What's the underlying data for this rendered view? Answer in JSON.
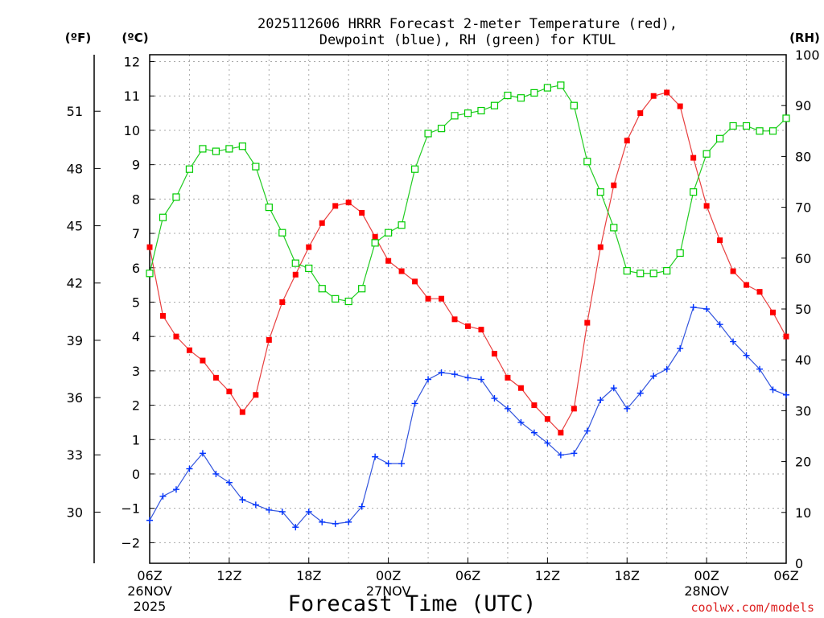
{
  "chart_data": {
    "type": "line",
    "title_line1": "2025112606 HRRR Forecast 2-meter Temperature (red),",
    "title_line2": "Dewpoint (blue), RH (green) for KTUL",
    "xlabel": "Forecast Time (UTC)",
    "unit_f_label": "(ºF)",
    "unit_c_label": "(ºC)",
    "unit_rh_label": "(RH)",
    "watermark": "coolwx.com/models",
    "x": [
      0,
      1,
      2,
      3,
      4,
      5,
      6,
      7,
      8,
      9,
      10,
      11,
      12,
      13,
      14,
      15,
      16,
      17,
      18,
      19,
      20,
      21,
      22,
      23,
      24,
      25,
      26,
      27,
      28,
      29,
      30,
      31,
      32,
      33,
      34,
      35,
      36,
      37,
      38,
      39,
      40,
      41,
      42,
      43,
      44,
      45,
      46,
      47,
      48
    ],
    "xlim": [
      0,
      48
    ],
    "ylim_c": [
      -2.6,
      12.2
    ],
    "ylim_rh": [
      0,
      100
    ],
    "c_ticks": [
      -2,
      -1,
      0,
      1,
      2,
      3,
      4,
      5,
      6,
      7,
      8,
      9,
      10,
      11,
      12
    ],
    "f_ticks": [
      30,
      33,
      36,
      39,
      42,
      45,
      48,
      51
    ],
    "rh_ticks": [
      0,
      10,
      20,
      30,
      40,
      50,
      60,
      70,
      80,
      90,
      100
    ],
    "x_ticks": [
      {
        "h": 0,
        "label": "06Z",
        "date": "26NOV",
        "year": "2025"
      },
      {
        "h": 6,
        "label": "12Z"
      },
      {
        "h": 12,
        "label": "18Z"
      },
      {
        "h": 18,
        "label": "00Z",
        "date": "27NOV"
      },
      {
        "h": 24,
        "label": "06Z"
      },
      {
        "h": 30,
        "label": "12Z"
      },
      {
        "h": 36,
        "label": "18Z"
      },
      {
        "h": 42,
        "label": "00Z",
        "date": "28NOV"
      },
      {
        "h": 48,
        "label": "06Z"
      }
    ],
    "series": [
      {
        "key": "temperature",
        "axis": "c",
        "color": "#ff0000",
        "line_color": "#e84040",
        "marker": "filled-square",
        "values": [
          6.6,
          4.6,
          4.0,
          3.6,
          3.3,
          2.8,
          2.4,
          1.8,
          2.3,
          3.9,
          5.0,
          5.8,
          6.6,
          7.3,
          7.8,
          7.9,
          7.6,
          6.9,
          6.2,
          5.9,
          5.6,
          5.1,
          5.1,
          4.5,
          4.3,
          4.2,
          3.5,
          2.8,
          2.5,
          2.0,
          1.6,
          1.2,
          1.9,
          4.4,
          6.6,
          8.4,
          9.7,
          10.5,
          11.0,
          11.1,
          10.7,
          9.2,
          7.8,
          6.8,
          5.9,
          5.5,
          5.3,
          4.7,
          4.0
        ]
      },
      {
        "key": "dewpoint",
        "axis": "c",
        "color": "#0033ff",
        "line_color": "#3355dd",
        "marker": "plus",
        "values": [
          -1.35,
          -0.65,
          -0.45,
          0.15,
          0.6,
          0.0,
          -0.25,
          -0.75,
          -0.9,
          -1.05,
          -1.1,
          -1.55,
          -1.1,
          -1.4,
          -1.45,
          -1.4,
          -0.95,
          0.5,
          0.3,
          0.3,
          2.05,
          2.75,
          2.95,
          2.9,
          2.8,
          2.75,
          2.2,
          1.9,
          1.5,
          1.2,
          0.9,
          0.55,
          0.6,
          1.25,
          2.15,
          2.5,
          1.9,
          2.35,
          2.85,
          3.05,
          3.65,
          4.85,
          4.8,
          4.35,
          3.85,
          3.45,
          3.05,
          2.45,
          2.3
        ]
      },
      {
        "key": "rh",
        "axis": "rh",
        "color": "#00cc00",
        "line_color": "#22cc22",
        "marker": "open-square",
        "values": [
          57,
          68,
          72,
          77.5,
          81.5,
          81,
          81.5,
          82,
          78,
          70,
          65,
          59,
          58,
          54,
          52,
          51.5,
          54,
          63,
          65,
          66.5,
          77.5,
          84.5,
          85.5,
          88,
          88.5,
          89,
          90,
          92,
          91.5,
          92.5,
          93.5,
          94,
          90,
          79,
          73,
          66,
          57.5,
          57,
          57,
          57.5,
          61,
          73,
          80.5,
          83.5,
          86,
          86,
          85,
          85,
          87.5
        ]
      }
    ]
  }
}
